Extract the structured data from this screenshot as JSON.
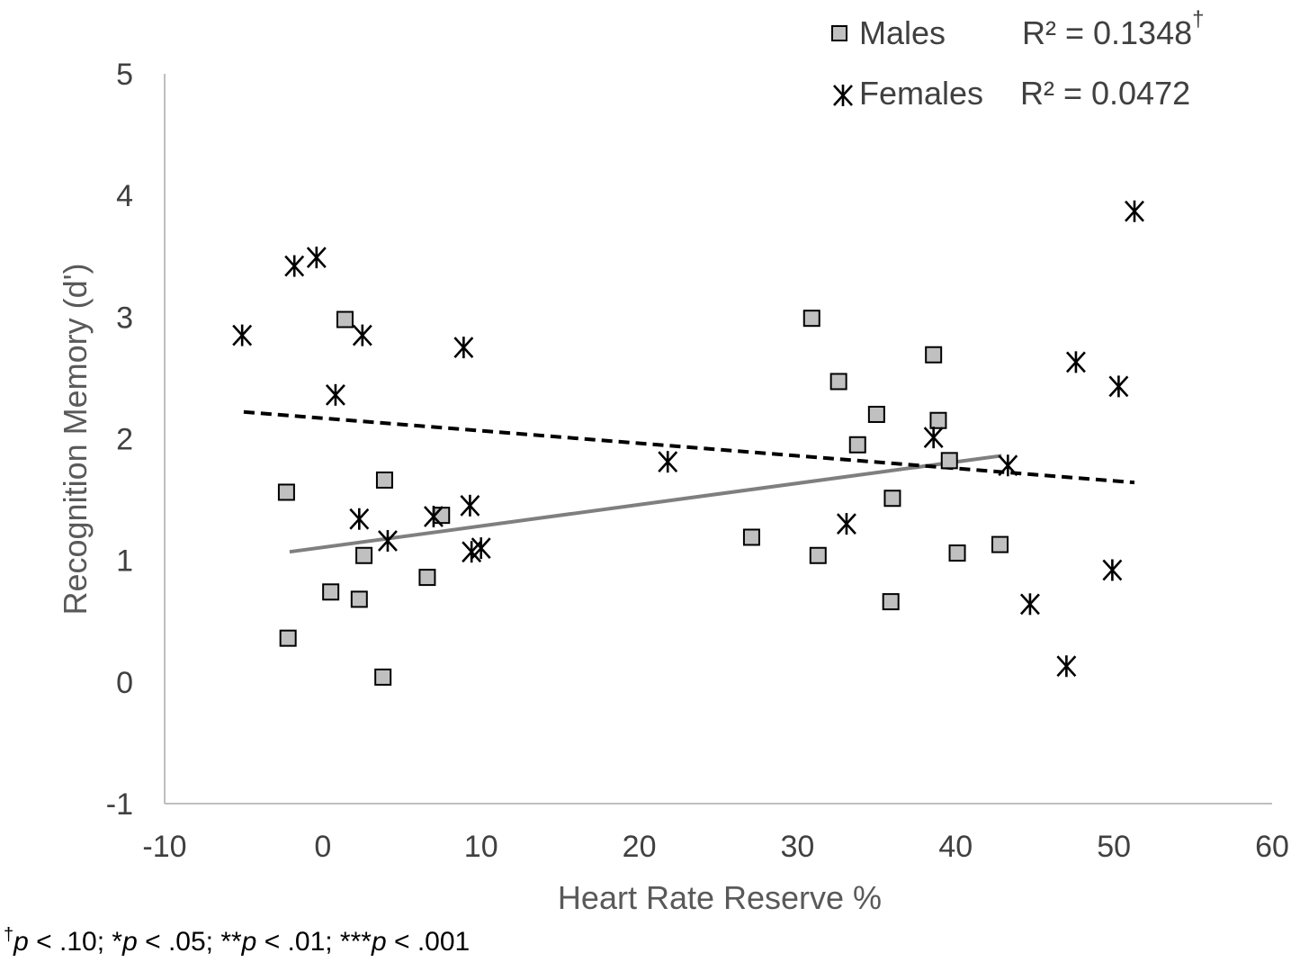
{
  "chart_data": {
    "type": "scatter",
    "title": "",
    "xlabel": "Heart Rate Reserve %",
    "ylabel": "Recognition Memory (d')",
    "xlim": [
      -10,
      60
    ],
    "ylim": [
      -1,
      5
    ],
    "x_ticks": [
      "-10",
      "0",
      "10",
      "20",
      "30",
      "40",
      "50",
      "60"
    ],
    "y_ticks": [
      "-1",
      "0",
      "1",
      "2",
      "3",
      "4",
      "5"
    ],
    "grid": false,
    "legend_position": "top-right",
    "series": [
      {
        "name": "Males",
        "marker": "square",
        "color": "#c0c0c0",
        "r2_label": "R² = 0.1348",
        "r2_sup": "†",
        "trendline": {
          "x": [
            -2.1,
            42.9
          ],
          "y": [
            1.07,
            1.86
          ],
          "style": "solid",
          "color": "#7f7f7f"
        },
        "points": [
          {
            "x": -2.3,
            "y": 1.56
          },
          {
            "x": -2.2,
            "y": 0.36
          },
          {
            "x": 0.5,
            "y": 0.74
          },
          {
            "x": 1.4,
            "y": 2.98
          },
          {
            "x": 2.3,
            "y": 0.68
          },
          {
            "x": 2.6,
            "y": 1.04
          },
          {
            "x": 3.8,
            "y": 0.04
          },
          {
            "x": 3.9,
            "y": 1.66
          },
          {
            "x": 6.6,
            "y": 0.86
          },
          {
            "x": 7.5,
            "y": 1.37
          },
          {
            "x": 27.1,
            "y": 1.19
          },
          {
            "x": 30.9,
            "y": 2.99
          },
          {
            "x": 31.3,
            "y": 1.04
          },
          {
            "x": 32.6,
            "y": 2.47
          },
          {
            "x": 33.8,
            "y": 1.95
          },
          {
            "x": 35.0,
            "y": 2.2
          },
          {
            "x": 35.9,
            "y": 0.66
          },
          {
            "x": 36.0,
            "y": 1.51
          },
          {
            "x": 38.6,
            "y": 2.69
          },
          {
            "x": 38.9,
            "y": 2.15
          },
          {
            "x": 39.6,
            "y": 1.82
          },
          {
            "x": 40.1,
            "y": 1.06
          },
          {
            "x": 42.8,
            "y": 1.13
          }
        ]
      },
      {
        "name": "Females",
        "marker": "star",
        "color": "#000000",
        "r2_label": "R² = 0.0472",
        "trendline": {
          "x": [
            -5.0,
            51.3
          ],
          "y": [
            2.22,
            1.64
          ],
          "style": "dashed",
          "color": "#000000"
        },
        "points": [
          {
            "x": -5.1,
            "y": 2.85
          },
          {
            "x": -1.8,
            "y": 3.42
          },
          {
            "x": -0.4,
            "y": 3.49
          },
          {
            "x": 0.8,
            "y": 2.36
          },
          {
            "x": 2.3,
            "y": 1.34
          },
          {
            "x": 2.5,
            "y": 2.85
          },
          {
            "x": 4.1,
            "y": 1.16
          },
          {
            "x": 7.0,
            "y": 1.36
          },
          {
            "x": 8.9,
            "y": 2.75
          },
          {
            "x": 9.3,
            "y": 1.45
          },
          {
            "x": 9.4,
            "y": 1.07
          },
          {
            "x": 10.0,
            "y": 1.1
          },
          {
            "x": 21.8,
            "y": 1.81
          },
          {
            "x": 33.1,
            "y": 1.3
          },
          {
            "x": 38.6,
            "y": 2.01
          },
          {
            "x": 43.3,
            "y": 1.78
          },
          {
            "x": 44.7,
            "y": 0.64
          },
          {
            "x": 47.0,
            "y": 0.13
          },
          {
            "x": 47.6,
            "y": 2.63
          },
          {
            "x": 49.9,
            "y": 0.92
          },
          {
            "x": 50.3,
            "y": 2.43
          },
          {
            "x": 51.3,
            "y": 3.87
          }
        ]
      }
    ],
    "footnote": {
      "dagger": "†",
      "text_parts": [
        "p",
        " < .10; *",
        "p",
        " < .05; **",
        "p",
        " < .01; ***",
        "p",
        " < .001"
      ]
    }
  }
}
